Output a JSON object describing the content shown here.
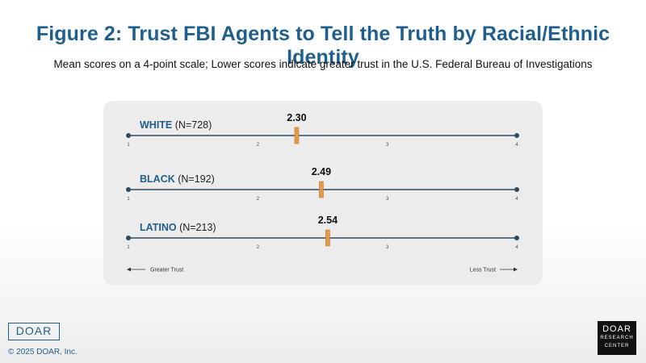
{
  "title": "Figure 2: Trust FBI Agents to Tell the Truth by Racial/Ethnic Identity",
  "subtitle": "Mean scores on a 4-point scale; Lower scores indicate greater trust in the U.S. Federal Bureau of Investigations",
  "footer": {
    "logo_left": "DOAR",
    "copyright": "© 2025 DOAR, Inc.",
    "logo_right": [
      "DOAR",
      "RESEARCH",
      "CENTER"
    ]
  },
  "colors": {
    "title": "#1f5f8c",
    "label": "#1f5f8c",
    "axis": "#2e4a5e",
    "marker": "#e39a4a",
    "panel": "#ececec"
  },
  "chart_data": {
    "type": "scatter",
    "scale_min": 1,
    "scale_max": 4,
    "ticks": [
      1,
      2,
      3,
      4
    ],
    "series": [
      {
        "name": "WHITE",
        "n_label": "(N=728)",
        "value": 2.3,
        "value_label": "2.30"
      },
      {
        "name": "BLACK",
        "n_label": "(N=192)",
        "value": 2.49,
        "value_label": "2.49"
      },
      {
        "name": "LATINO",
        "n_label": "(N=213)",
        "value": 2.54,
        "value_label": "2.54"
      }
    ],
    "direction_labels": {
      "left": "Greater Trust",
      "right": "Less Trust"
    }
  }
}
